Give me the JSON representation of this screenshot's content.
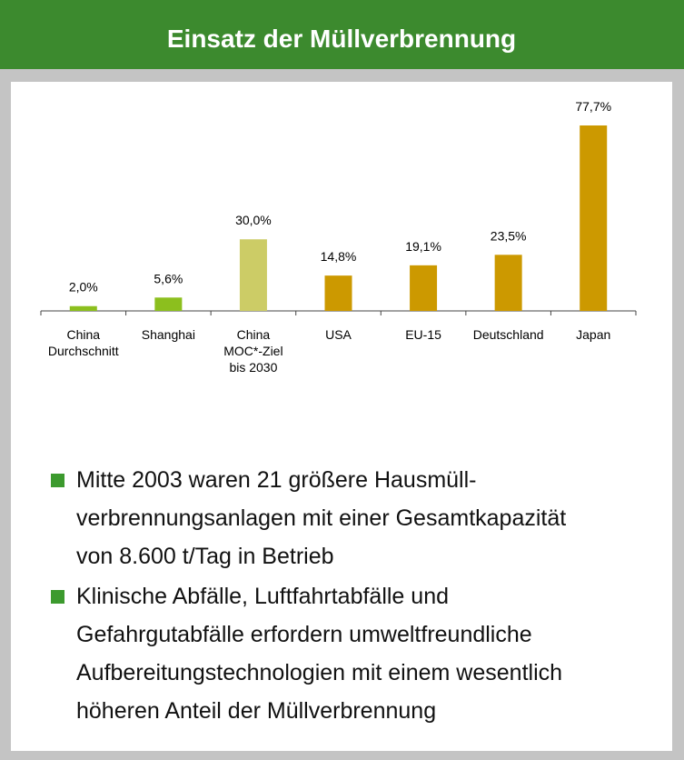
{
  "chart_data": {
    "type": "bar",
    "title": "Einsatz der Müllverbrennung",
    "categories": [
      "China\nDurchschnitt",
      "Shanghai",
      "China\nMOC*-Ziel\nbis 2030",
      "USA",
      "EU-15",
      "Deutschland",
      "Japan"
    ],
    "values": [
      2.0,
      5.6,
      30.0,
      14.8,
      19.1,
      23.5,
      77.7
    ],
    "value_labels": [
      "2,0%",
      "5,6%",
      "30,0%",
      "14,8%",
      "19,1%",
      "23,5%",
      "77,7%"
    ],
    "colors": [
      "#8cbf1e",
      "#8cbf1e",
      "#cccc66",
      "#cc9900",
      "#cc9900",
      "#cc9900",
      "#cc9900"
    ]
  },
  "bullets": [
    [
      "Mitte 2003 waren 21 größere Hausmüll-",
      "verbrennungsanlagen mit einer Gesamtkapazität",
      "von 8.600 t/Tag in Betrieb"
    ],
    [
      "Klinische Abfälle, Luftfahrtabfälle und",
      "Gefahrgutabfälle erfordern umweltfreundliche",
      "Aufbereitungstechnologien mit einem wesentlich",
      "höheren Anteil der Müllverbrennung"
    ]
  ]
}
